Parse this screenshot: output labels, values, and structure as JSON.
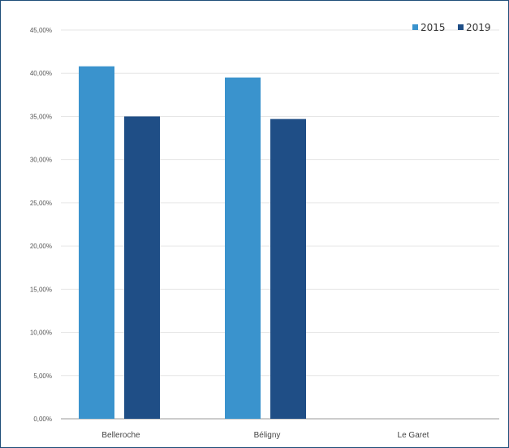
{
  "chart_data": {
    "type": "bar",
    "categories": [
      "Belleroche",
      "Béligny",
      "Le Garet"
    ],
    "series": [
      {
        "name": "2015",
        "values": [
          40.8,
          39.5,
          null
        ],
        "color": "#3a93cd"
      },
      {
        "name": "2019",
        "values": [
          35.0,
          34.7,
          null
        ],
        "color": "#1f4e86"
      }
    ],
    "ylim": [
      0,
      45
    ],
    "yticks": [
      "0,00%",
      "5,00%",
      "10,00%",
      "15,00%",
      "20,00%",
      "25,00%",
      "30,00%",
      "35,00%",
      "40,00%",
      "45,00%"
    ],
    "grid": true,
    "legend_position": "top-right",
    "title": "",
    "xlabel": "",
    "ylabel": ""
  }
}
